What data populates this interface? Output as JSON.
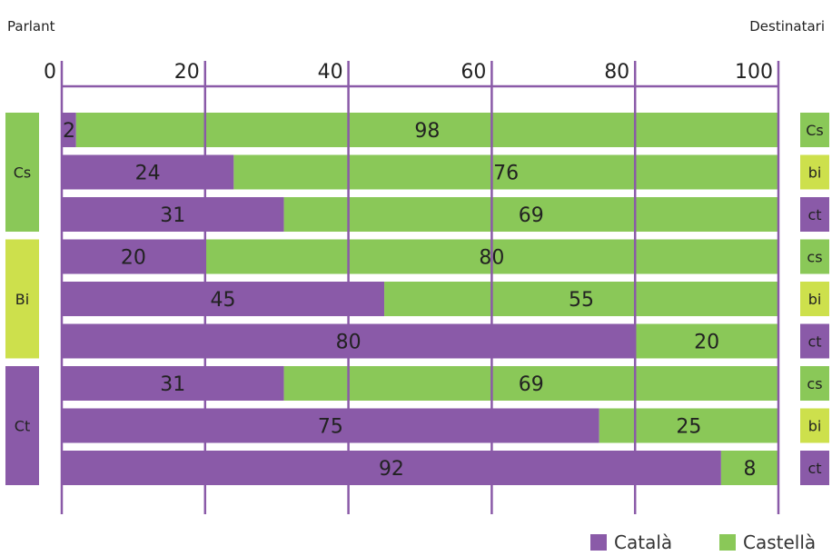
{
  "header": {
    "left_label": "Parlant",
    "right_label": "Destinatari"
  },
  "colors": {
    "catala": "#8a5aa8",
    "castella": "#8ac858",
    "bi": "#cde04c",
    "axis": "#8a5aa8"
  },
  "chart_data": {
    "type": "bar",
    "orientation": "horizontal",
    "stacked": true,
    "xlim": [
      0,
      100
    ],
    "x_ticks": [
      0,
      20,
      40,
      60,
      80,
      100
    ],
    "grid": true,
    "legend_position": "bottom-right",
    "speaker_groups": [
      {
        "label": "Cs",
        "color": "#8ac858",
        "rows": 3
      },
      {
        "label": "Bi",
        "color": "#cde04c",
        "rows": 3
      },
      {
        "label": "Ct",
        "color": "#8a5aa8",
        "rows": 3
      }
    ],
    "recipient_labels": [
      "Cs",
      "bi",
      "ct",
      "cs",
      "bi",
      "ct",
      "cs",
      "bi",
      "ct"
    ],
    "recipient_colors": [
      "#8ac858",
      "#cde04c",
      "#8a5aa8",
      "#8ac858",
      "#cde04c",
      "#8a5aa8",
      "#8ac858",
      "#cde04c",
      "#8a5aa8"
    ],
    "series": [
      {
        "name": "Català",
        "color": "#8a5aa8",
        "values": [
          2,
          24,
          31,
          20,
          45,
          80,
          31,
          75,
          92
        ]
      },
      {
        "name": "Castellà",
        "color": "#8ac858",
        "values": [
          98,
          76,
          69,
          80,
          55,
          20,
          69,
          25,
          8
        ]
      }
    ]
  }
}
